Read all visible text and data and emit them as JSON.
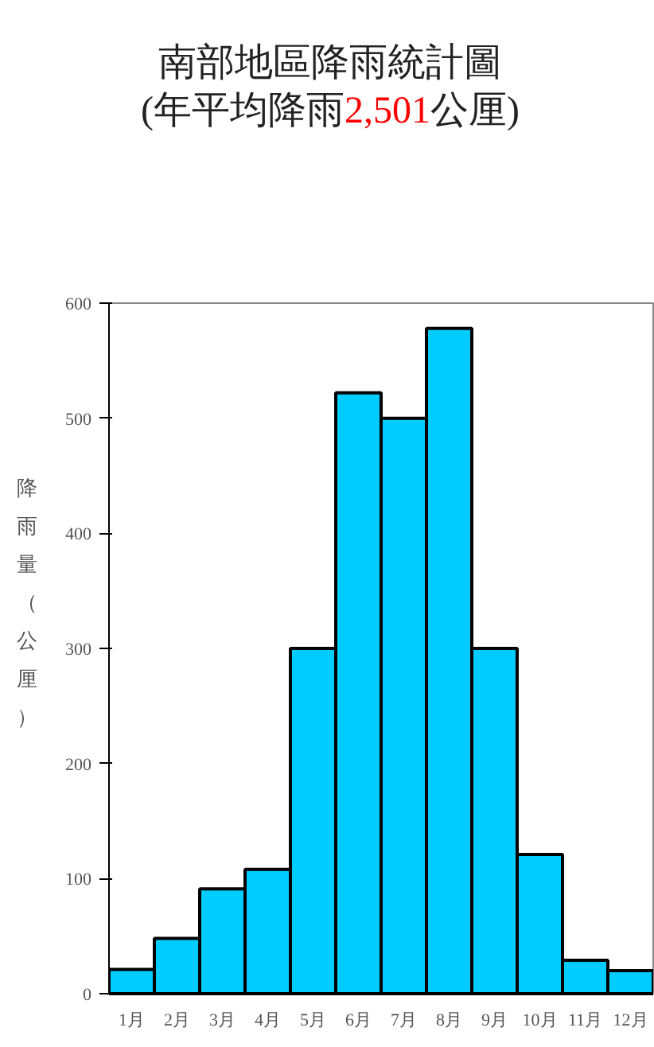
{
  "chart_data": {
    "type": "bar",
    "title": "南部地區降雨統計圖",
    "subtitle": "(年平均降雨2,501公厘)",
    "ylabel": "降雨量（公厘）",
    "categories": [
      "1月",
      "2月",
      "3月",
      "4月",
      "5月",
      "6月",
      "7月",
      "8月",
      "9月",
      "10月",
      "11月",
      "12月"
    ],
    "values": [
      21,
      48,
      91,
      108,
      300,
      522,
      500,
      578,
      300,
      121,
      29,
      20
    ],
    "color": "#00ccff",
    "ylim": [
      0,
      600
    ],
    "yticks": [
      0,
      100,
      200,
      300,
      400,
      500,
      600
    ],
    "grid": false
  }
}
